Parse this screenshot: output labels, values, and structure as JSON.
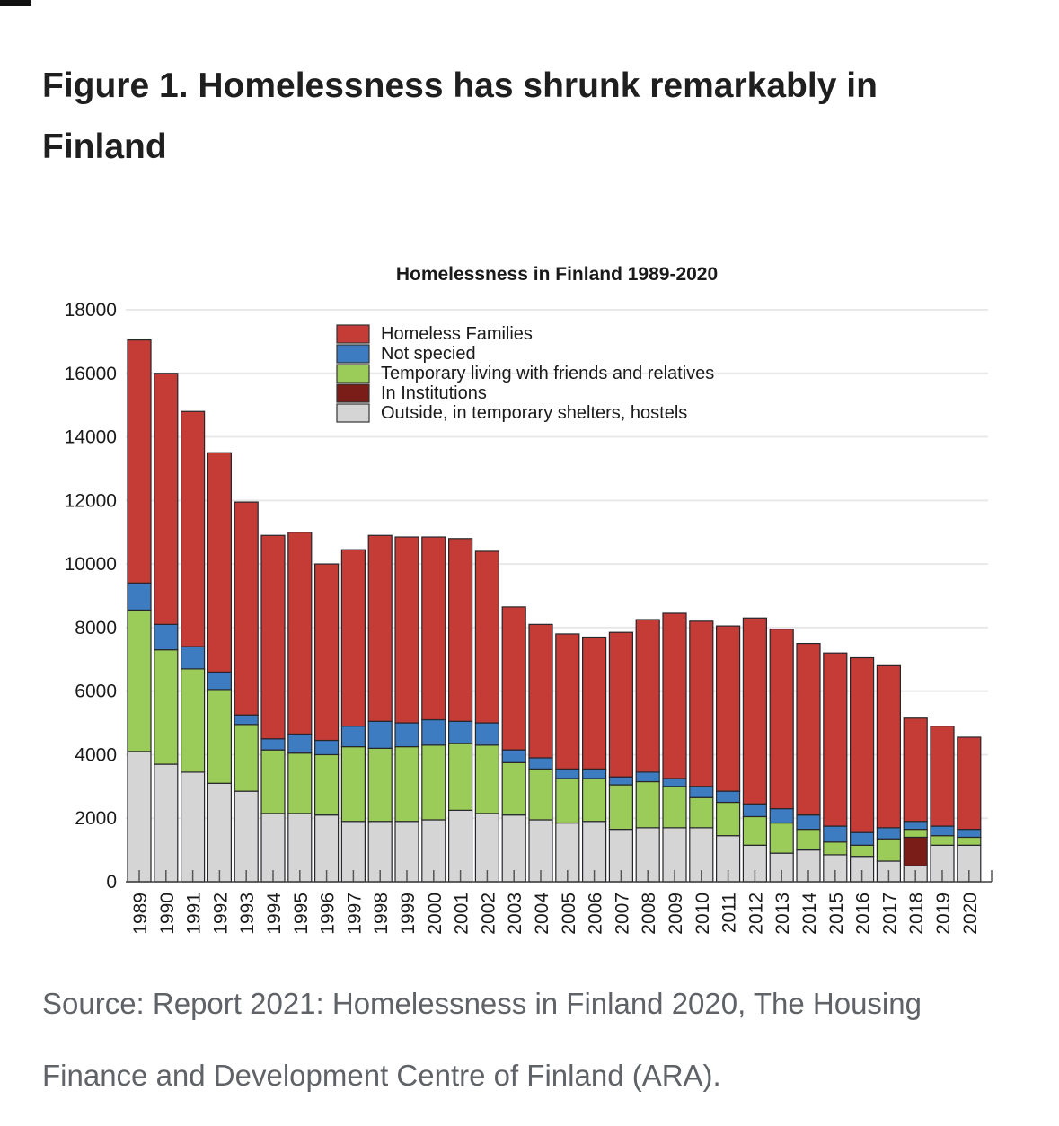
{
  "figure": {
    "title": "Figure 1. Homelessness has shrunk remarkably in Finland"
  },
  "source": {
    "text": "Source: Report 2021: Homelessness in Finland 2020, The Housing Finance and Development Centre of Finland (ARA)."
  },
  "chart_data": {
    "type": "bar",
    "stacked": true,
    "title": "Homelessness in Finland 1989-2020",
    "xlabel": "",
    "ylabel": "",
    "ylim": [
      0,
      18000
    ],
    "ytick_step": 2000,
    "grid": "horizontal",
    "xtick_rotation": 90,
    "legend_position": "upper-center-inside",
    "categories": [
      "1989",
      "1990",
      "1991",
      "1992",
      "1993",
      "1994",
      "1995",
      "1996",
      "1997",
      "1998",
      "1999",
      "2000",
      "2001",
      "2002",
      "2003",
      "2004",
      "2005",
      "2006",
      "2007",
      "2008",
      "2009",
      "2010",
      "2011",
      "2012",
      "2013",
      "2014",
      "2015",
      "2016",
      "2017",
      "2018",
      "2019",
      "2020"
    ],
    "series": [
      {
        "name": "Outside, in temporary shelters, hostels",
        "color": "#d5d5d5",
        "values": [
          4100,
          3700,
          3450,
          3100,
          2850,
          2150,
          2150,
          2100,
          1900,
          1900,
          1900,
          1950,
          2250,
          2150,
          2100,
          1950,
          1850,
          1900,
          1650,
          1700,
          1700,
          1700,
          1450,
          1150,
          900,
          1000,
          850,
          800,
          650,
          500,
          1150,
          1150
        ]
      },
      {
        "name": "In Institutions",
        "color": "#7a1c18",
        "values": [
          0,
          0,
          0,
          0,
          0,
          0,
          0,
          0,
          0,
          0,
          0,
          0,
          0,
          0,
          0,
          0,
          0,
          0,
          0,
          0,
          0,
          0,
          0,
          0,
          0,
          0,
          0,
          0,
          0,
          900,
          0,
          0
        ]
      },
      {
        "name": "Temporary living with friends and relatives",
        "color": "#9bcb58",
        "values": [
          4450,
          3600,
          3250,
          2950,
          2100,
          2000,
          1900,
          1900,
          2350,
          2300,
          2350,
          2350,
          2100,
          2150,
          1650,
          1600,
          1400,
          1350,
          1400,
          1450,
          1300,
          950,
          1050,
          900,
          950,
          650,
          400,
          350,
          700,
          250,
          300,
          250
        ]
      },
      {
        "name": "Not specied",
        "color": "#3d7cc0",
        "values": [
          850,
          800,
          700,
          550,
          300,
          350,
          600,
          450,
          650,
          850,
          750,
          800,
          700,
          700,
          400,
          350,
          300,
          300,
          250,
          300,
          250,
          350,
          350,
          400,
          450,
          450,
          500,
          400,
          350,
          250,
          300,
          250
        ]
      },
      {
        "name": "Homeless Families",
        "color": "#c53b36",
        "values": [
          7650,
          7900,
          7400,
          6900,
          6700,
          6400,
          6350,
          5550,
          5550,
          5850,
          5850,
          5750,
          5750,
          5400,
          4500,
          4200,
          4250,
          4150,
          4550,
          4800,
          5200,
          5200,
          5200,
          5850,
          5650,
          5400,
          5450,
          5500,
          5100,
          3250,
          3150,
          2900
        ]
      }
    ],
    "legend": [
      {
        "label": "Homeless Families",
        "color": "#c53b36"
      },
      {
        "label": "Not specied",
        "color": "#3d7cc0"
      },
      {
        "label": "Temporary living with friends and relatives",
        "color": "#9bcb58"
      },
      {
        "label": "In Institutions",
        "color": "#7a1c18"
      },
      {
        "label": "Outside, in temporary shelters, hostels",
        "color": "#d5d5d5"
      }
    ]
  },
  "style_colors": {
    "bar_border": "#26262c",
    "grid_line": "#e8e8e8",
    "axis_line": "#3c3c3c",
    "tick_mark": "#555555"
  }
}
